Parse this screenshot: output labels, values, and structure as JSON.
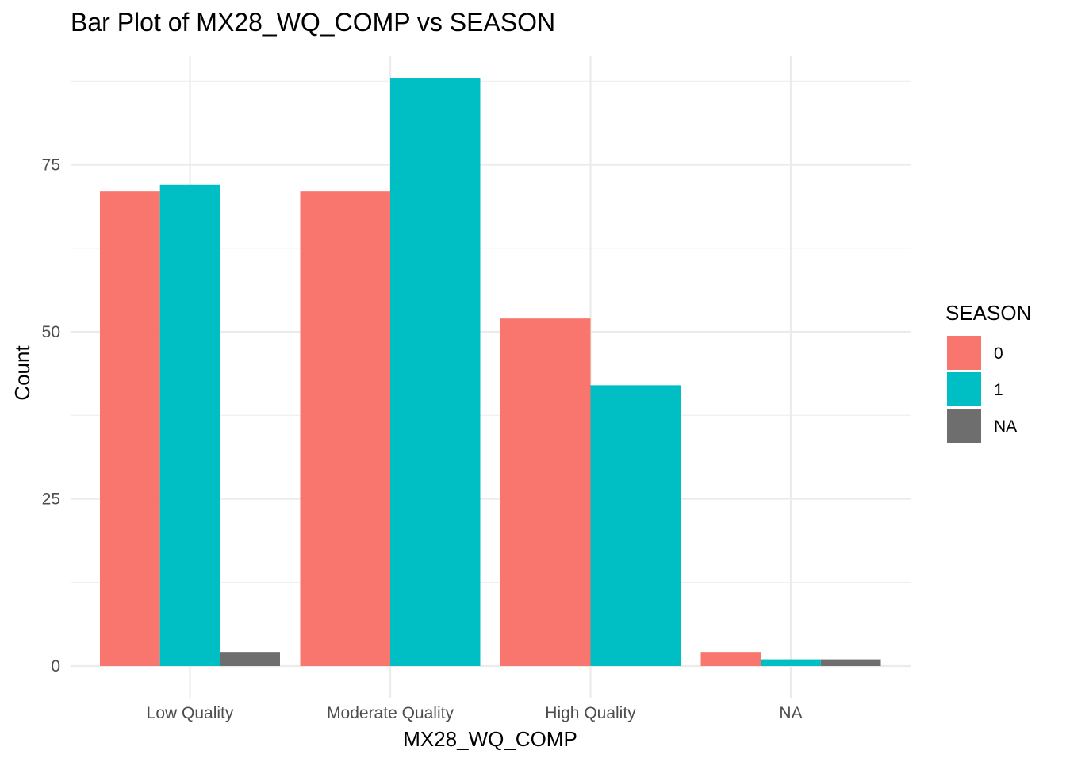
{
  "chart_data": {
    "type": "bar",
    "title": "Bar Plot of MX28_WQ_COMP vs SEASON",
    "xlabel": "MX28_WQ_COMP",
    "ylabel": "Count",
    "categories": [
      "Low Quality",
      "Moderate Quality",
      "High Quality",
      "NA"
    ],
    "series": [
      {
        "name": "0",
        "color": "#F8766D",
        "values": [
          71,
          71,
          52,
          2
        ]
      },
      {
        "name": "1",
        "color": "#00BFC4",
        "values": [
          72,
          88,
          42,
          1
        ]
      },
      {
        "name": "NA",
        "color": "#6E6E6E",
        "values": [
          2,
          null,
          null,
          1
        ]
      }
    ],
    "ylim": [
      0,
      91
    ],
    "yticks": [
      0,
      25,
      50,
      75
    ],
    "grid": true,
    "legend": {
      "title": "SEASON",
      "position": "right"
    }
  }
}
